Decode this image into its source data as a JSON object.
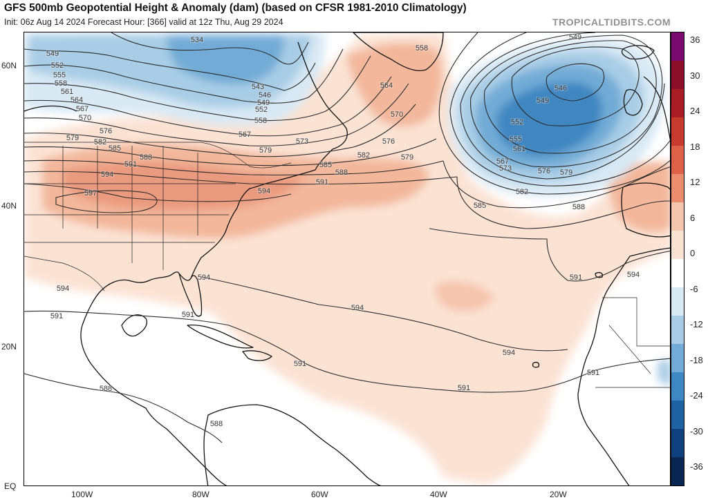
{
  "header": {
    "title": "GFS 500mb Geopotential Height & Anomaly (dam) (based on CFSR 1981-2010 Climatology)",
    "subtitle": "Init: 06z Aug 14 2024   Forecast Hour: [366]   valid at 12z Thu, Aug 29 2024",
    "brand": "TROPICALTIDBITS.COM"
  },
  "axes": {
    "lat_labels": [
      "60N",
      "40N",
      "20N",
      "EQ"
    ],
    "lon_labels": [
      "100W",
      "80W",
      "60W",
      "40W",
      "20W"
    ]
  },
  "colorbar": {
    "ticks": [
      "36",
      "30",
      "24",
      "18",
      "12",
      "6",
      "0",
      "-6",
      "-12",
      "-18",
      "-24",
      "-30",
      "-36"
    ],
    "colors": [
      "#7b0a6e",
      "#8c0f2a",
      "#a81c24",
      "#c8392e",
      "#dd6048",
      "#ea8c6e",
      "#f6c5ad",
      "#fbe3d4",
      "#ffffff",
      "#d8e9f4",
      "#a9cde6",
      "#72acd6",
      "#3f87c2",
      "#1f62a3",
      "#0e417e",
      "#0a2653"
    ]
  },
  "contours": [
    {
      "label": "549",
      "lx": 75,
      "ly": 80
    },
    {
      "label": "552",
      "lx": 82,
      "ly": 97
    },
    {
      "label": "555",
      "lx": 85,
      "ly": 111
    },
    {
      "label": "558",
      "lx": 87,
      "ly": 123
    },
    {
      "label": "561",
      "lx": 96,
      "ly": 135
    },
    {
      "label": "564",
      "lx": 110,
      "ly": 147
    },
    {
      "label": "567",
      "lx": 118,
      "ly": 160
    },
    {
      "label": "570",
      "lx": 122,
      "ly": 173
    },
    {
      "label": "576",
      "lx": 152,
      "ly": 192
    },
    {
      "label": "579",
      "lx": 104,
      "ly": 202
    },
    {
      "label": "582",
      "lx": 144,
      "ly": 208
    },
    {
      "label": "585",
      "lx": 165,
      "ly": 217
    },
    {
      "label": "588",
      "lx": 210,
      "ly": 230
    },
    {
      "label": "591",
      "lx": 188,
      "ly": 240
    },
    {
      "label": "594",
      "lx": 154,
      "ly": 255
    },
    {
      "label": "597",
      "lx": 130,
      "ly": 282
    },
    {
      "label": "534",
      "lx": 284,
      "ly": 60
    },
    {
      "label": "543",
      "lx": 372,
      "ly": 128
    },
    {
      "label": "546",
      "lx": 382,
      "ly": 140
    },
    {
      "label": "549",
      "lx": 380,
      "ly": 151
    },
    {
      "label": "552",
      "lx": 377,
      "ly": 161
    },
    {
      "label": "558",
      "lx": 376,
      "ly": 177
    },
    {
      "label": "567",
      "lx": 353,
      "ly": 197
    },
    {
      "label": "573",
      "lx": 436,
      "ly": 207
    },
    {
      "label": "579",
      "lx": 383,
      "ly": 220
    },
    {
      "label": "585",
      "lx": 470,
      "ly": 241
    },
    {
      "label": "582",
      "lx": 525,
      "ly": 227
    },
    {
      "label": "588",
      "lx": 493,
      "ly": 252
    },
    {
      "label": "591",
      "lx": 465,
      "ly": 266
    },
    {
      "label": "594",
      "lx": 381,
      "ly": 279
    },
    {
      "label": "558",
      "lx": 609,
      "ly": 72
    },
    {
      "label": "564",
      "lx": 558,
      "ly": 126
    },
    {
      "label": "570",
      "lx": 573,
      "ly": 168
    },
    {
      "label": "576",
      "lx": 561,
      "ly": 207
    },
    {
      "label": "579",
      "lx": 588,
      "ly": 230
    },
    {
      "label": "549",
      "lx": 831,
      "ly": 56
    },
    {
      "label": "546",
      "lx": 810,
      "ly": 130
    },
    {
      "label": "549",
      "lx": 784,
      "ly": 148
    },
    {
      "label": "552",
      "lx": 747,
      "ly": 179
    },
    {
      "label": "555",
      "lx": 745,
      "ly": 204
    },
    {
      "label": "561",
      "lx": 750,
      "ly": 218
    },
    {
      "label": "567",
      "lx": 726,
      "ly": 236
    },
    {
      "label": "573",
      "lx": 730,
      "ly": 246
    },
    {
      "label": "576",
      "lx": 786,
      "ly": 250
    },
    {
      "label": "579",
      "lx": 818,
      "ly": 252
    },
    {
      "label": "582",
      "lx": 754,
      "ly": 280
    },
    {
      "label": "585",
      "lx": 693,
      "ly": 300
    },
    {
      "label": "588",
      "lx": 836,
      "ly": 302
    },
    {
      "label": "591",
      "lx": 832,
      "ly": 404
    },
    {
      "label": "594",
      "lx": 915,
      "ly": 400
    },
    {
      "label": "594",
      "lx": 294,
      "ly": 404
    },
    {
      "label": "594",
      "lx": 90,
      "ly": 420
    },
    {
      "label": "591",
      "lx": 81,
      "ly": 460
    },
    {
      "label": "591",
      "lx": 271,
      "ly": 458
    },
    {
      "label": "594",
      "lx": 516,
      "ly": 448
    },
    {
      "label": "594",
      "lx": 735,
      "ly": 513
    },
    {
      "label": "591",
      "lx": 433,
      "ly": 529
    },
    {
      "label": "591",
      "lx": 670,
      "ly": 564
    },
    {
      "label": "591",
      "lx": 857,
      "ly": 542
    },
    {
      "label": "588",
      "lx": 152,
      "ly": 565
    },
    {
      "label": "588",
      "lx": 312,
      "ly": 616
    }
  ]
}
